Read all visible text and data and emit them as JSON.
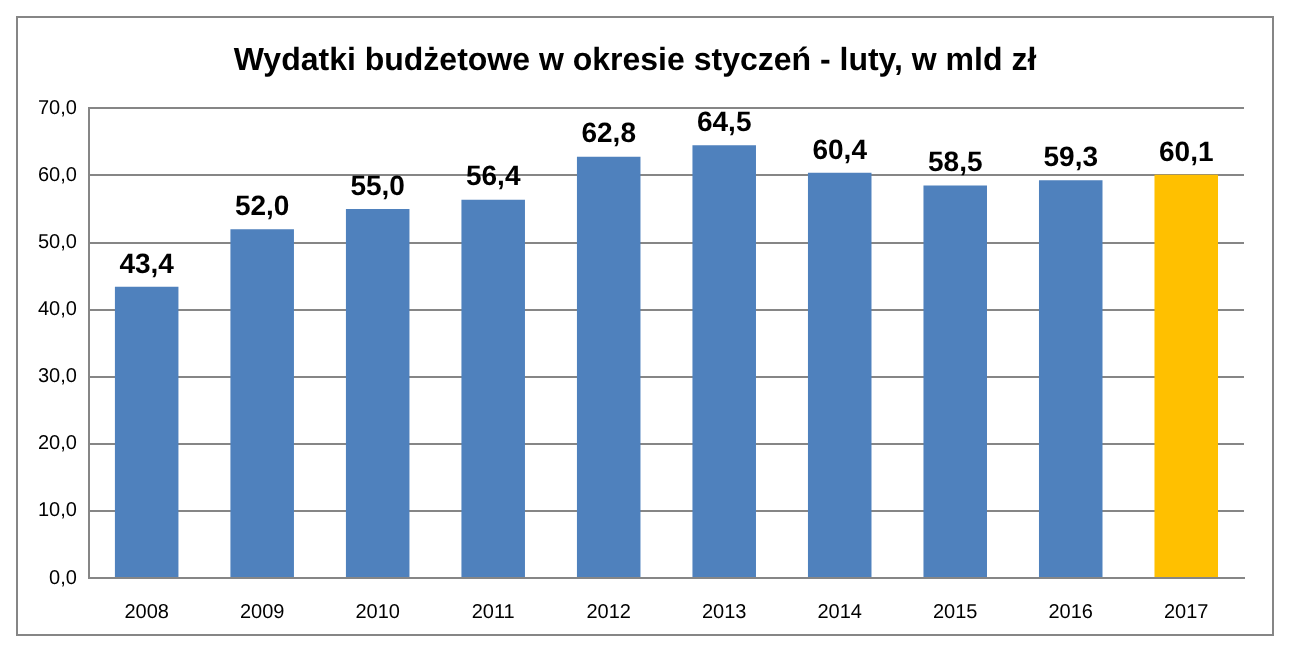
{
  "chart_data": {
    "type": "bar",
    "title": "Wydatki budżetowe w okresie styczeń - luty, w mld zł",
    "categories": [
      "2008",
      "2009",
      "2010",
      "2011",
      "2012",
      "2013",
      "2014",
      "2015",
      "2016",
      "2017"
    ],
    "values": [
      43.4,
      52.0,
      55.0,
      56.4,
      62.8,
      64.5,
      60.4,
      58.5,
      59.3,
      60.1
    ],
    "colors": [
      "#4f81bd",
      "#4f81bd",
      "#4f81bd",
      "#4f81bd",
      "#4f81bd",
      "#4f81bd",
      "#4f81bd",
      "#4f81bd",
      "#4f81bd",
      "#ffc000"
    ],
    "value_labels": [
      "43,4",
      "52,0",
      "55,0",
      "56,4",
      "62,8",
      "64,5",
      "60,4",
      "58,5",
      "59,3",
      "60,1"
    ],
    "ylim": [
      0,
      70
    ],
    "yticks": [
      {
        "value": 0,
        "label": "0,0"
      },
      {
        "value": 10,
        "label": "10,0"
      },
      {
        "value": 20,
        "label": "20,0"
      },
      {
        "value": 30,
        "label": "30,0"
      },
      {
        "value": 40,
        "label": "40,0"
      },
      {
        "value": 50,
        "label": "50,0"
      },
      {
        "value": 60,
        "label": "60,0"
      },
      {
        "value": 70,
        "label": "70,0"
      }
    ],
    "grid": "y",
    "legend": false
  }
}
